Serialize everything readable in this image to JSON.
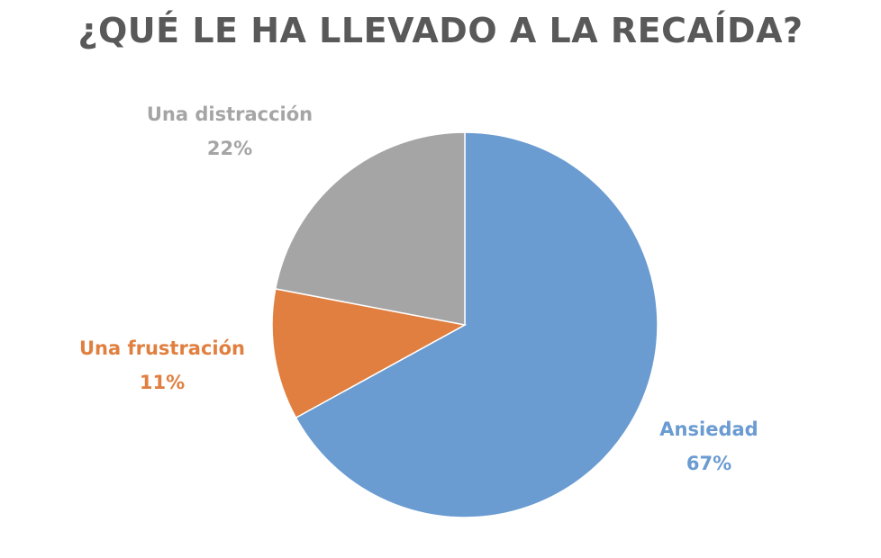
{
  "chart_data": {
    "type": "pie",
    "title": "¿QUÉ LE HA LLEVADO A LA RECAÍDA?",
    "slices": [
      {
        "label": "Ansiedad",
        "value": 67,
        "value_text": "67%",
        "color": "#6a9bd1"
      },
      {
        "label": "Una frustración",
        "value": 11,
        "value_text": "11%",
        "color": "#e07f3f"
      },
      {
        "label": "Una distracción",
        "value": 22,
        "value_text": "22%",
        "color": "#a5a5a5"
      }
    ],
    "start": "12 o'clock",
    "direction": "clockwise",
    "legend": "none"
  }
}
